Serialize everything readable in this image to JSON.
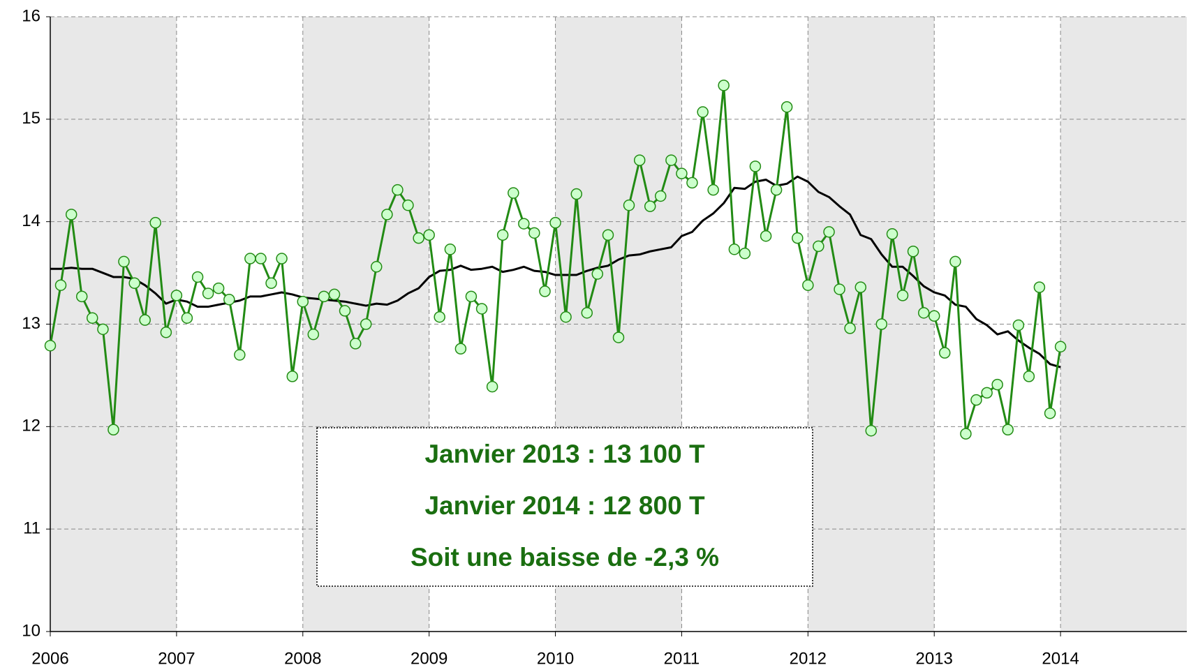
{
  "chart_data": {
    "type": "line",
    "x": [
      2006,
      2006.083,
      2006.167,
      2006.25,
      2006.333,
      2006.417,
      2006.5,
      2006.583,
      2006.667,
      2006.75,
      2006.833,
      2006.917,
      2007,
      2007.083,
      2007.167,
      2007.25,
      2007.333,
      2007.417,
      2007.5,
      2007.583,
      2007.667,
      2007.75,
      2007.833,
      2007.917,
      2008,
      2008.083,
      2008.167,
      2008.25,
      2008.333,
      2008.417,
      2008.5,
      2008.583,
      2008.667,
      2008.75,
      2008.833,
      2008.917,
      2009,
      2009.083,
      2009.167,
      2009.25,
      2009.333,
      2009.417,
      2009.5,
      2009.583,
      2009.667,
      2009.75,
      2009.833,
      2009.917,
      2010,
      2010.083,
      2010.167,
      2010.25,
      2010.333,
      2010.417,
      2010.5,
      2010.583,
      2010.667,
      2010.75,
      2010.833,
      2010.917,
      2011,
      2011.083,
      2011.167,
      2011.25,
      2011.333,
      2011.417,
      2011.5,
      2011.583,
      2011.667,
      2011.75,
      2011.833,
      2011.917,
      2012,
      2012.083,
      2012.167,
      2012.25,
      2012.333,
      2012.417,
      2012.5,
      2012.583,
      2012.667,
      2012.75,
      2012.833,
      2012.917,
      2013,
      2013.083,
      2013.167,
      2013.25,
      2013.333,
      2013.417,
      2013.5,
      2013.583,
      2013.667,
      2013.75,
      2013.833,
      2013.917,
      2014
    ],
    "series": [
      {
        "color": "#228b14",
        "marker_fill": "#ccffcc",
        "values": [
          12.79,
          13.38,
          14.07,
          13.27,
          13.06,
          12.95,
          11.97,
          13.61,
          13.4,
          13.04,
          13.99,
          12.92,
          13.28,
          13.06,
          13.46,
          13.3,
          13.35,
          13.24,
          12.7,
          13.64,
          13.64,
          13.4,
          13.64,
          12.49,
          13.22,
          12.9,
          13.27,
          13.29,
          13.13,
          12.81,
          13.0,
          13.56,
          14.07,
          14.31,
          14.16,
          13.84,
          13.87,
          13.07,
          13.73,
          12.76,
          13.27,
          13.15,
          12.39,
          13.87,
          14.28,
          13.98,
          13.89,
          13.32,
          13.99,
          13.07,
          14.27,
          13.11,
          13.49,
          13.87,
          12.87,
          14.16,
          14.6,
          14.15,
          14.25,
          14.6,
          14.47,
          14.38,
          15.07,
          14.31,
          15.33,
          13.73,
          13.69,
          14.54,
          13.86,
          14.31,
          15.12,
          13.84,
          13.38,
          13.76,
          13.9,
          13.34,
          12.96,
          13.36,
          11.96,
          13.0,
          13.88,
          13.28,
          13.71,
          13.11,
          13.08,
          12.72,
          13.61,
          11.93,
          12.26,
          12.33,
          12.41,
          11.97,
          12.99,
          12.49,
          13.36,
          12.13,
          12.78
        ]
      },
      {
        "color": "#000000",
        "values": [
          13.54,
          13.54,
          13.55,
          13.54,
          13.54,
          13.5,
          13.46,
          13.46,
          13.44,
          13.38,
          13.3,
          13.2,
          13.24,
          13.22,
          13.17,
          13.17,
          13.19,
          13.21,
          13.23,
          13.27,
          13.27,
          13.29,
          13.31,
          13.29,
          13.26,
          13.25,
          13.24,
          13.23,
          13.22,
          13.2,
          13.18,
          13.2,
          13.19,
          13.23,
          13.3,
          13.35,
          13.46,
          13.52,
          13.53,
          13.57,
          13.53,
          13.54,
          13.56,
          13.51,
          13.53,
          13.56,
          13.52,
          13.51,
          13.48,
          13.48,
          13.48,
          13.52,
          13.55,
          13.57,
          13.63,
          13.67,
          13.68,
          13.71,
          13.73,
          13.75,
          13.86,
          13.9,
          14.01,
          14.08,
          14.18,
          14.33,
          14.32,
          14.39,
          14.41,
          14.35,
          14.37,
          14.44,
          14.39,
          14.29,
          14.24,
          14.15,
          14.07,
          13.87,
          13.83,
          13.68,
          13.56,
          13.56,
          13.47,
          13.37,
          13.31,
          13.28,
          13.19,
          13.17,
          13.05,
          12.99,
          12.9,
          12.93,
          12.84,
          12.77,
          12.71,
          12.61,
          12.58
        ]
      }
    ],
    "xlim": [
      2006,
      2015
    ],
    "xticks": [
      2006,
      2007,
      2008,
      2009,
      2010,
      2011,
      2012,
      2013,
      2014
    ],
    "ylim": [
      10,
      16
    ],
    "yticks": [
      10,
      11,
      12,
      13,
      14,
      15,
      16
    ],
    "grid": true,
    "band_color": "#e8e8e8",
    "annotations": [
      "Janvier 2013 : 13 100 T",
      "Janvier 2014 : 12 800 T",
      "Soit une baisse de -2,3 %"
    ],
    "annotation_color": "#1a6e10"
  }
}
